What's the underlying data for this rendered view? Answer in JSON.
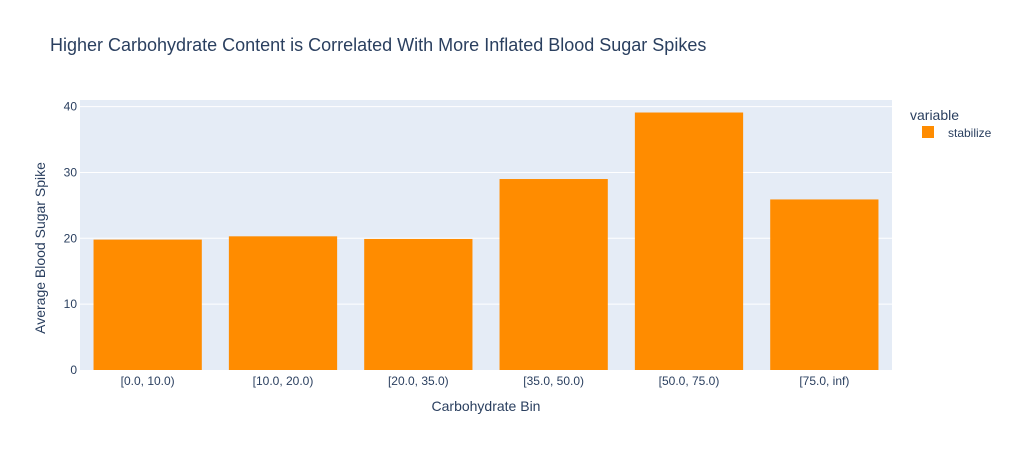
{
  "chart_data": {
    "type": "bar",
    "title": "Higher Carbohydrate Content is Correlated With More Inflated Blood Sugar Spikes",
    "xlabel": "Carbohydrate Bin",
    "ylabel": "Average Blood Sugar Spike",
    "categories": [
      "[0.0, 10.0)",
      "[10.0, 20.0)",
      "[20.0, 35.0)",
      "[35.0, 50.0)",
      "[50.0, 75.0)",
      "[75.0, inf)"
    ],
    "series": [
      {
        "name": "stabilize",
        "values": [
          19.8,
          20.3,
          19.9,
          29.0,
          39.1,
          25.9
        ],
        "color": "#ff8c00"
      }
    ],
    "ylim": [
      0,
      41
    ],
    "yticks": [
      0,
      10,
      20,
      30,
      40
    ],
    "grid": true,
    "legend": {
      "title": "variable",
      "placement": "right"
    },
    "plot_background": "#e5ecf6"
  }
}
